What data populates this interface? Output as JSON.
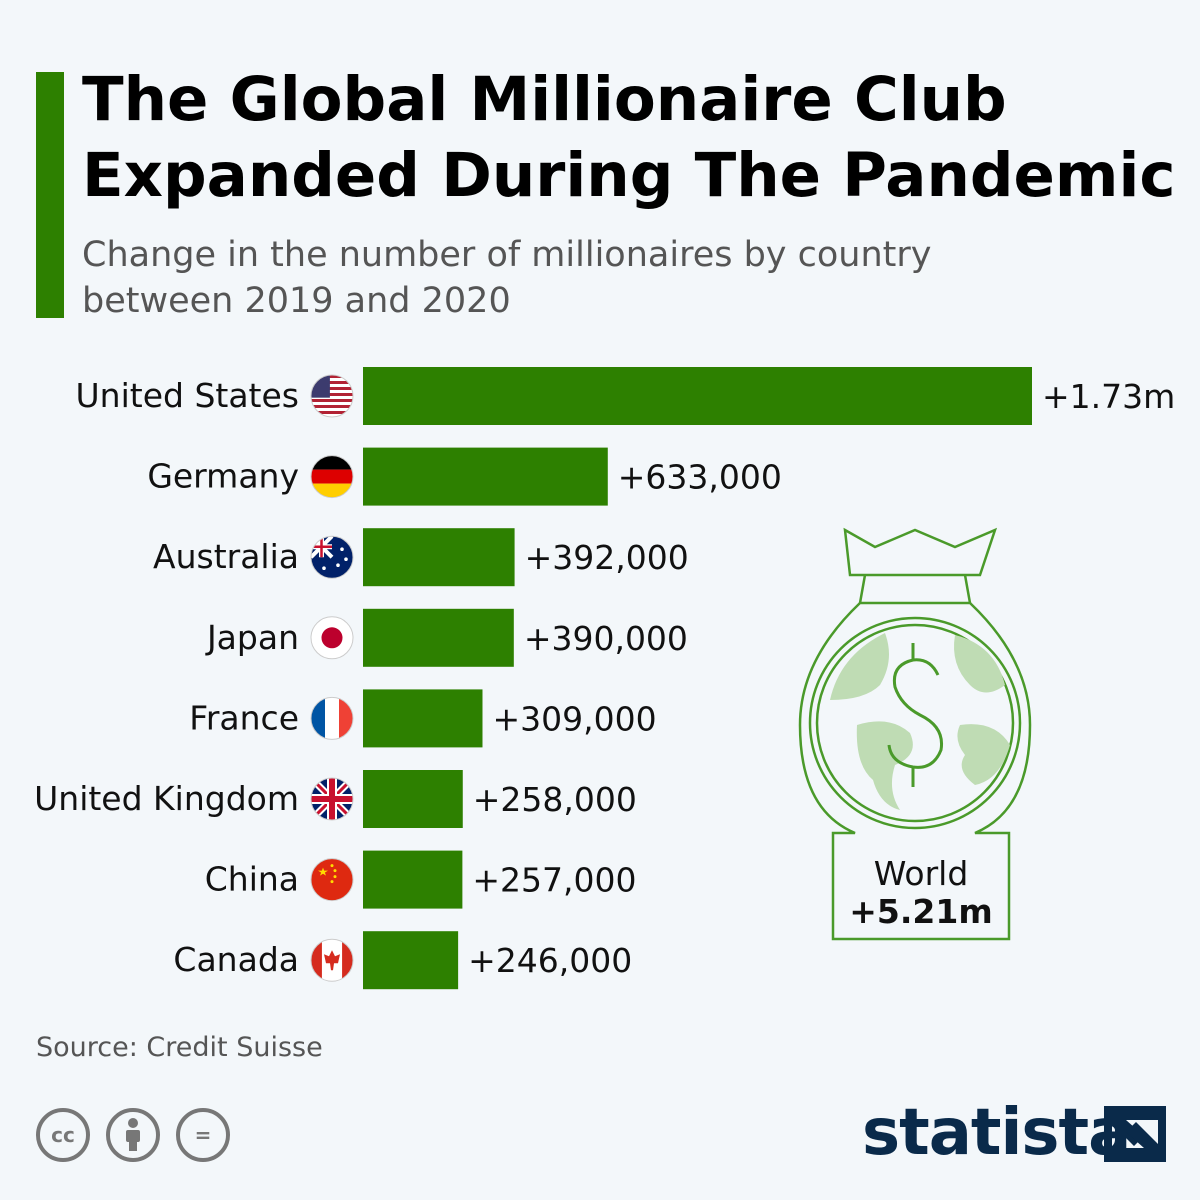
{
  "header": {
    "title_lines": [
      "The Global Millionaire Club",
      "Expanded During The Pandemic"
    ],
    "subtitle_lines": [
      "Change in the number of millionaires by country",
      "between 2019 and 2020"
    ]
  },
  "colors": {
    "accent": "#2d8000",
    "bar": "#2d8000",
    "bag_line": "#4a9a2a",
    "continent": "#bfdcb4",
    "brand": "#0a2a4a"
  },
  "chart_data": {
    "type": "bar",
    "orientation": "horizontal",
    "categories": [
      "United States",
      "Germany",
      "Australia",
      "Japan",
      "France",
      "United Kingdom",
      "China",
      "Canada"
    ],
    "values": [
      1730000,
      633000,
      392000,
      390000,
      309000,
      258000,
      257000,
      246000
    ],
    "value_labels": [
      "+1.73m",
      "+633,000",
      "+392,000",
      "+390,000",
      "+309,000",
      "+258,000",
      "+257,000",
      "+246,000"
    ],
    "flags": [
      "us-flag-icon",
      "germany-flag-icon",
      "australia-flag-icon",
      "japan-flag-icon",
      "france-flag-icon",
      "uk-flag-icon",
      "china-flag-icon",
      "canada-flag-icon"
    ],
    "xlim": [
      0,
      1730000
    ],
    "grid": false,
    "title": "The Global Millionaire Club Expanded During The Pandemic",
    "subtitle": "Change in the number of millionaires by country between 2019 and 2020"
  },
  "world": {
    "label": "World",
    "value": "+5.21m",
    "icon": "money-bag-globe-icon"
  },
  "footer": {
    "source": "Source: Credit Suisse",
    "license_icons": [
      "cc-icon",
      "attribution-icon",
      "no-derivatives-icon"
    ],
    "brand": "statista",
    "cc_text": "cc",
    "nd_text": "="
  }
}
